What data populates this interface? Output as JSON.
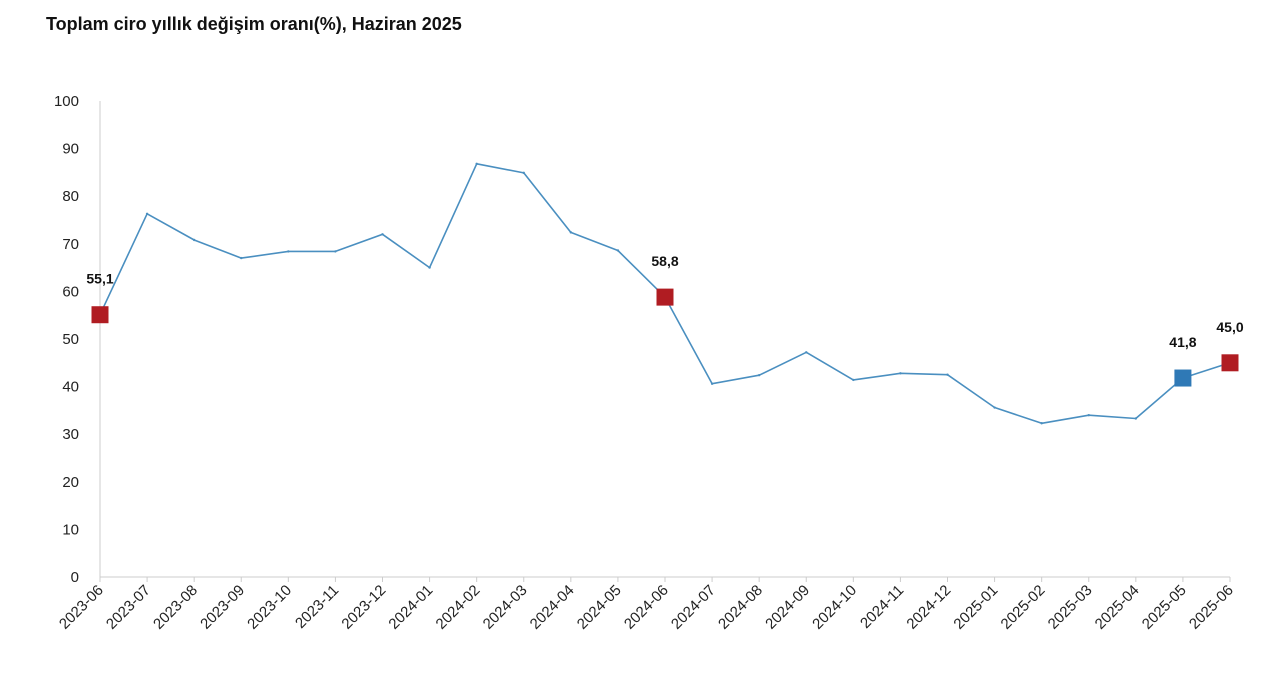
{
  "chart_data": {
    "type": "line",
    "title": "Toplam ciro yıllık değişim oranı(%), Haziran 2025",
    "xlabel": "",
    "ylabel": "",
    "ylim": [
      0,
      100
    ],
    "yticks": [
      0,
      10,
      20,
      30,
      40,
      50,
      60,
      70,
      80,
      90,
      100
    ],
    "grid": false,
    "legend": "none",
    "categories": [
      "2023-06",
      "2023-07",
      "2023-08",
      "2023-09",
      "2023-10",
      "2023-11",
      "2023-12",
      "2024-01",
      "2024-02",
      "2024-03",
      "2024-04",
      "2024-05",
      "2024-06",
      "2024-07",
      "2024-08",
      "2024-09",
      "2024-10",
      "2024-11",
      "2024-12",
      "2025-01",
      "2025-02",
      "2025-03",
      "2025-04",
      "2025-05",
      "2025-06"
    ],
    "series": [
      {
        "name": "Toplam ciro yıllık değişim oranı",
        "color": "#4a8fc0",
        "values": [
          55.1,
          76.3,
          70.8,
          67.0,
          68.4,
          68.4,
          72.0,
          65.0,
          86.8,
          84.9,
          72.4,
          68.6,
          58.8,
          40.6,
          42.4,
          47.2,
          41.4,
          42.8,
          42.5,
          35.6,
          32.3,
          34.0,
          33.3,
          41.8,
          45.0
        ]
      }
    ],
    "highlights": [
      {
        "index": 0,
        "label": "55,1",
        "color": "#b01c22"
      },
      {
        "index": 12,
        "label": "58,8",
        "color": "#b01c22"
      },
      {
        "index": 23,
        "label": "41,8",
        "color": "#2f79b6"
      },
      {
        "index": 24,
        "label": "45,0",
        "color": "#b01c22"
      }
    ]
  }
}
